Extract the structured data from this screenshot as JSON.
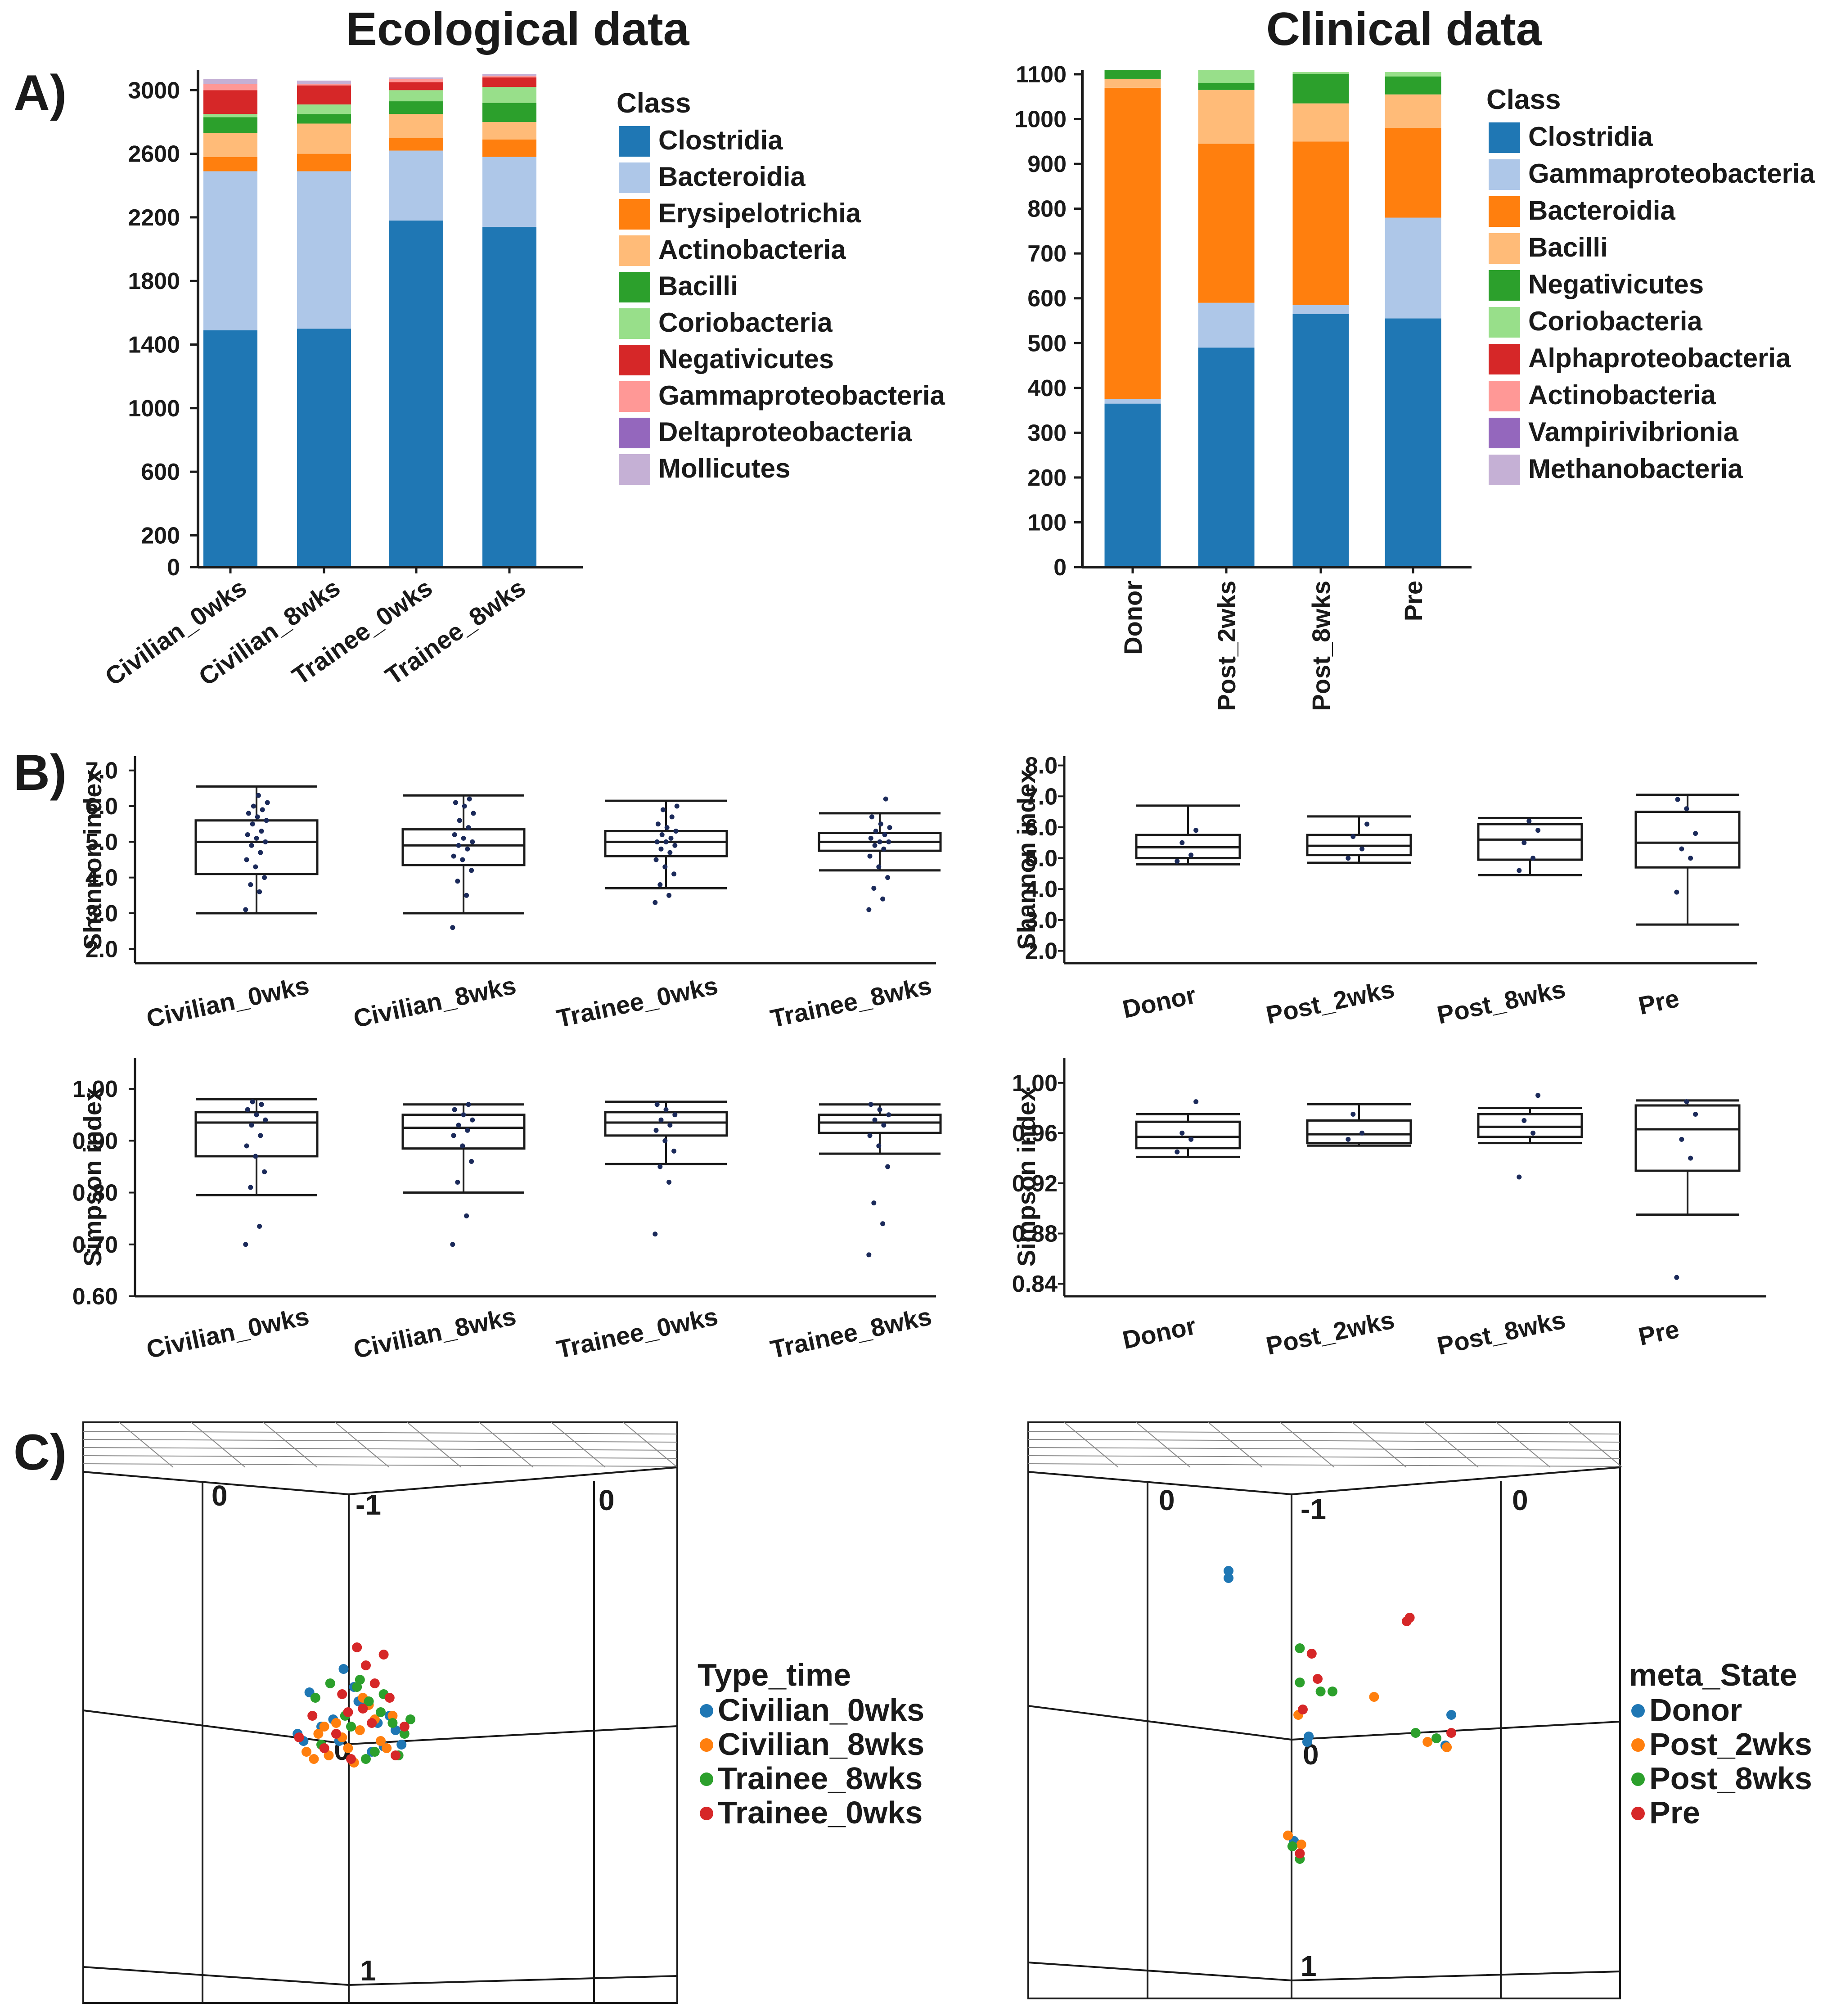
{
  "figure": {
    "panel_labels": [
      "A)",
      "B)",
      "C)"
    ],
    "section_titles": {
      "ecological": "Ecological data",
      "clinical": "Clinical data"
    }
  },
  "colors": {
    "palette10": [
      "#1f77b4",
      "#aec7e8",
      "#ff7f0e",
      "#ffbb78",
      "#2ca02c",
      "#98df8a",
      "#d62728",
      "#ff9896",
      "#9467bd",
      "#c5b0d5"
    ],
    "box_line": "#1a1a1a",
    "dot": "#1b2a5a"
  },
  "chart_data": [
    {
      "id": "eco_bar",
      "type": "bar",
      "stacked": true,
      "title": "Ecological data",
      "legend_title": "Class",
      "legend_position": "right",
      "categories": [
        "Civilian_0wks",
        "Civilian_8wks",
        "Trainee_0wks",
        "Trainee_8wks"
      ],
      "yticks": [
        0,
        200,
        600,
        1000,
        1400,
        1800,
        2200,
        2600,
        3000
      ],
      "ylim": [
        0,
        3100
      ],
      "series": [
        {
          "name": "Clostridia",
          "values": [
            1490,
            1500,
            2180,
            2140
          ]
        },
        {
          "name": "Bacteroidia",
          "values": [
            1000,
            990,
            440,
            440
          ]
        },
        {
          "name": "Erysipelotrichia",
          "values": [
            90,
            110,
            80,
            110
          ]
        },
        {
          "name": "Actinobacteria",
          "values": [
            150,
            190,
            150,
            110
          ]
        },
        {
          "name": "Bacilli",
          "values": [
            100,
            60,
            80,
            120
          ]
        },
        {
          "name": "Coriobacteria",
          "values": [
            20,
            60,
            70,
            100
          ]
        },
        {
          "name": "Negativicutes",
          "values": [
            150,
            120,
            50,
            60
          ]
        },
        {
          "name": "Gammaproteobacteria",
          "values": [
            40,
            10,
            20,
            10
          ]
        },
        {
          "name": "Deltaproteobacteria",
          "values": [
            0,
            0,
            0,
            0
          ]
        },
        {
          "name": "Mollicutes",
          "values": [
            30,
            20,
            10,
            10
          ]
        }
      ]
    },
    {
      "id": "clin_bar",
      "type": "bar",
      "stacked": true,
      "title": "Clinical data",
      "legend_title": "Class",
      "legend_position": "right",
      "categories": [
        "Donor",
        "Post_2wks",
        "Post_8wks",
        "Pre"
      ],
      "yticks": [
        0,
        100,
        200,
        300,
        400,
        500,
        600,
        700,
        800,
        900,
        1000,
        1100
      ],
      "ylim": [
        0,
        1100
      ],
      "series": [
        {
          "name": "Clostridia",
          "values": [
            365,
            490,
            565,
            555
          ]
        },
        {
          "name": "Gammaproteobacteria",
          "values": [
            10,
            100,
            20,
            225
          ]
        },
        {
          "name": "Bacteroidia",
          "values": [
            695,
            355,
            365,
            200
          ]
        },
        {
          "name": "Bacilli",
          "values": [
            20,
            120,
            85,
            75
          ]
        },
        {
          "name": "Negativicutes",
          "values": [
            20,
            15,
            65,
            40
          ]
        },
        {
          "name": "Coriobacteria",
          "values": [
            0,
            30,
            5,
            10
          ]
        },
        {
          "name": "Alphaproteobacteria",
          "values": [
            0,
            0,
            0,
            0
          ]
        },
        {
          "name": "Actinobacteria",
          "values": [
            0,
            0,
            0,
            0
          ]
        },
        {
          "name": "Vampirivibrionia",
          "values": [
            0,
            0,
            0,
            0
          ]
        },
        {
          "name": "Methanobacteria",
          "values": [
            0,
            0,
            0,
            0
          ]
        }
      ]
    },
    {
      "id": "eco_shannon",
      "type": "box",
      "ylabel": "Shannon index",
      "categories": [
        "Civilian_0wks",
        "Civilian_8wks",
        "Trainee_0wks",
        "Trainee_8wks"
      ],
      "yticks": [
        2.0,
        3.0,
        4.0,
        5.0,
        6.0,
        7.0
      ],
      "tick_labels": [
        "2.0",
        "3.0",
        "4.0",
        "5.0",
        "6.0",
        "7.0"
      ],
      "ylim": [
        1.6,
        7.4
      ],
      "boxes": [
        {
          "min": 3.0,
          "q1": 4.1,
          "median": 5.0,
          "q3": 5.6,
          "max": 6.55,
          "points": [
            3.1,
            3.6,
            3.8,
            4.0,
            4.3,
            4.5,
            4.7,
            4.9,
            5.0,
            5.1,
            5.2,
            5.3,
            5.5,
            5.6,
            5.7,
            5.8,
            5.9,
            6.0,
            6.1,
            6.3
          ]
        },
        {
          "min": 3.0,
          "q1": 4.35,
          "median": 4.9,
          "q3": 5.35,
          "max": 6.3,
          "points": [
            2.6,
            3.5,
            3.9,
            4.2,
            4.5,
            4.6,
            4.8,
            4.9,
            5.0,
            5.1,
            5.2,
            5.4,
            5.6,
            5.8,
            6.0,
            6.1,
            6.2
          ]
        },
        {
          "min": 3.7,
          "q1": 4.6,
          "median": 5.0,
          "q3": 5.3,
          "max": 6.15,
          "points": [
            3.3,
            3.5,
            3.8,
            4.1,
            4.3,
            4.5,
            4.7,
            4.8,
            4.9,
            5.0,
            5.0,
            5.1,
            5.2,
            5.3,
            5.4,
            5.5,
            5.7,
            5.9,
            6.0
          ]
        },
        {
          "min": 4.2,
          "q1": 4.75,
          "median": 5.0,
          "q3": 5.25,
          "max": 5.8,
          "points": [
            3.1,
            3.4,
            3.7,
            4.0,
            4.3,
            4.6,
            4.8,
            4.9,
            5.0,
            5.0,
            5.1,
            5.2,
            5.3,
            5.4,
            5.5,
            5.7,
            6.2
          ]
        }
      ]
    },
    {
      "id": "clin_shannon",
      "type": "box",
      "ylabel": "Shannon index",
      "categories": [
        "Donor",
        "Post_2wks",
        "Post_8wks",
        "Pre"
      ],
      "yticks": [
        2.0,
        3.0,
        4.0,
        5.0,
        6.0,
        7.0,
        8.0
      ],
      "tick_labels": [
        "2.0",
        "3.0",
        "4.0",
        "5.0",
        "6.0",
        "7.0",
        "8.0"
      ],
      "ylim": [
        1.6,
        8.3
      ],
      "boxes": [
        {
          "min": 4.8,
          "q1": 5.0,
          "median": 5.35,
          "q3": 5.75,
          "max": 6.7,
          "points": [
            4.9,
            5.1,
            5.5,
            5.9
          ]
        },
        {
          "min": 4.85,
          "q1": 5.1,
          "median": 5.4,
          "q3": 5.75,
          "max": 6.35,
          "points": [
            5.0,
            5.3,
            5.7,
            6.1
          ]
        },
        {
          "min": 4.45,
          "q1": 4.95,
          "median": 5.6,
          "q3": 6.1,
          "max": 6.3,
          "points": [
            4.6,
            5.0,
            5.5,
            5.9,
            6.2
          ]
        },
        {
          "min": 2.85,
          "q1": 4.7,
          "median": 5.5,
          "q3": 6.5,
          "max": 7.05,
          "points": [
            3.9,
            5.0,
            5.3,
            5.8,
            6.6,
            6.9
          ]
        }
      ]
    },
    {
      "id": "eco_simpson",
      "type": "box",
      "ylabel": "Simpson index",
      "categories": [
        "Civilian_0wks",
        "Civilian_8wks",
        "Trainee_0wks",
        "Trainee_8wks"
      ],
      "yticks": [
        0.6,
        0.7,
        0.8,
        0.9,
        1.0
      ],
      "tick_labels": [
        "0.60",
        "0.70",
        "0.80",
        "0.90",
        "1.00"
      ],
      "ylim": [
        0.6,
        1.06
      ],
      "boxes": [
        {
          "min": 0.795,
          "q1": 0.87,
          "median": 0.935,
          "q3": 0.955,
          "max": 0.98,
          "points": [
            0.7,
            0.735,
            0.81,
            0.84,
            0.87,
            0.89,
            0.91,
            0.93,
            0.94,
            0.95,
            0.96,
            0.97,
            0.975
          ]
        },
        {
          "min": 0.8,
          "q1": 0.885,
          "median": 0.925,
          "q3": 0.95,
          "max": 0.97,
          "points": [
            0.7,
            0.755,
            0.82,
            0.86,
            0.89,
            0.91,
            0.92,
            0.93,
            0.94,
            0.95,
            0.96,
            0.97
          ]
        },
        {
          "min": 0.855,
          "q1": 0.91,
          "median": 0.935,
          "q3": 0.955,
          "max": 0.975,
          "points": [
            0.72,
            0.82,
            0.85,
            0.88,
            0.9,
            0.92,
            0.93,
            0.94,
            0.95,
            0.96,
            0.97
          ]
        },
        {
          "min": 0.875,
          "q1": 0.915,
          "median": 0.935,
          "q3": 0.95,
          "max": 0.97,
          "points": [
            0.68,
            0.74,
            0.78,
            0.85,
            0.89,
            0.91,
            0.93,
            0.94,
            0.95,
            0.96,
            0.97
          ]
        }
      ]
    },
    {
      "id": "clin_simpson",
      "type": "box",
      "ylabel": "Simpson index",
      "categories": [
        "Donor",
        "Post_2wks",
        "Post_8wks",
        "Pre"
      ],
      "yticks": [
        0.84,
        0.88,
        0.92,
        0.96,
        1.0
      ],
      "tick_labels": [
        "0.84",
        "0.88",
        "0.92",
        "0.96",
        "1.00"
      ],
      "ylim": [
        0.83,
        1.02
      ],
      "boxes": [
        {
          "min": 0.941,
          "q1": 0.948,
          "median": 0.957,
          "q3": 0.969,
          "max": 0.975,
          "points": [
            0.945,
            0.955,
            0.96,
            0.985
          ]
        },
        {
          "min": 0.95,
          "q1": 0.952,
          "median": 0.959,
          "q3": 0.97,
          "max": 0.983,
          "points": [
            0.955,
            0.96,
            0.975
          ]
        },
        {
          "min": 0.952,
          "q1": 0.957,
          "median": 0.965,
          "q3": 0.975,
          "max": 0.98,
          "points": [
            0.925,
            0.96,
            0.97,
            0.99
          ]
        },
        {
          "min": 0.895,
          "q1": 0.93,
          "median": 0.963,
          "q3": 0.982,
          "max": 0.986,
          "points": [
            0.845,
            0.94,
            0.955,
            0.975,
            0.985
          ]
        }
      ]
    },
    {
      "id": "eco_pca",
      "type": "scatter",
      "dimensions": 3,
      "legend_title": "Type_time",
      "legend_position": "right",
      "axis_labels": {
        "left_top": "0",
        "top_center": "-1",
        "right_top": "0",
        "center": "0",
        "bottom": "1"
      },
      "xlim": [
        -1,
        1
      ],
      "ylim": [
        -1,
        1
      ],
      "series": [
        {
          "name": "Civilian_0wks",
          "x": [
            -0.36,
            -0.32,
            -0.28,
            -0.05,
            0.1,
            0.18,
            -0.12,
            0.22,
            0.3,
            0.05,
            -0.2,
            0.14,
            -0.08,
            0.26,
            0.34,
            0.02
          ],
          "y": [
            0.02,
            -0.02,
            0.25,
            0.38,
            0.18,
            0.08,
            0.1,
            -0.05,
            0.04,
            0.2,
            0.06,
            -0.08,
            -0.02,
            0.12,
            -0.04,
            0.28
          ]
        },
        {
          "name": "Civilian_8wks",
          "x": [
            -0.3,
            -0.25,
            -0.22,
            -0.15,
            -0.1,
            -0.02,
            0.06,
            0.12,
            0.2,
            0.28,
            -0.18,
            0.02,
            0.16,
            0.24,
            0.08,
            -0.06
          ],
          "y": [
            -0.08,
            -0.12,
            0.02,
            -0.1,
            0.08,
            -0.06,
            0.04,
            0.18,
            -0.02,
            0.12,
            0.06,
            -0.14,
            0.1,
            -0.06,
            0.22,
            0.0
          ]
        },
        {
          "name": "Trainee_8wks",
          "x": [
            -0.24,
            -0.14,
            -0.04,
            0.04,
            0.12,
            0.2,
            0.28,
            0.36,
            0.4,
            0.1,
            -0.2,
            0.0,
            0.16,
            0.32,
            0.22,
            0.06
          ],
          "y": [
            0.22,
            0.3,
            0.12,
            0.28,
            0.2,
            0.14,
            0.08,
            0.02,
            0.1,
            -0.12,
            -0.04,
            0.06,
            -0.08,
            -0.1,
            0.24,
            0.32
          ]
        },
        {
          "name": "Trainee_0wks",
          "x": [
            -0.35,
            -0.26,
            -0.18,
            -0.1,
            -0.02,
            0.04,
            0.1,
            0.16,
            0.22,
            0.3,
            0.36,
            0.0,
            0.08,
            0.14,
            0.26,
            -0.06
          ],
          "y": [
            0.0,
            0.12,
            -0.06,
            0.02,
            0.14,
            0.5,
            0.4,
            0.3,
            0.46,
            -0.1,
            0.06,
            -0.12,
            0.16,
            0.08,
            0.22,
            0.24
          ]
        }
      ]
    },
    {
      "id": "clin_pca",
      "type": "scatter",
      "dimensions": 3,
      "legend_title": "meta_State",
      "legend_position": "right",
      "axis_labels": {
        "left_top": "0",
        "top_center": "-1",
        "right_top": "0",
        "center": "0",
        "bottom": "1"
      },
      "xlim": [
        -1,
        1
      ],
      "ylim": [
        -1,
        1
      ],
      "series": [
        {
          "name": "Donor",
          "x": [
            -0.5,
            -0.5,
            0.03,
            0.04,
            -0.06,
            0.96,
            1.0
          ],
          "y": [
            0.86,
            0.9,
            -0.05,
            -0.02,
            -0.6,
            -0.07,
            0.1
          ]
        },
        {
          "name": "Post_2wks",
          "x": [
            -0.03,
            0.48,
            -0.01,
            -0.1,
            0.84,
            0.97
          ],
          "y": [
            0.1,
            0.2,
            -0.62,
            -0.57,
            -0.05,
            -0.08
          ]
        },
        {
          "name": "Post_8wks",
          "x": [
            -0.02,
            -0.02,
            0.12,
            0.2,
            0.76,
            0.9,
            -0.02,
            -0.07
          ],
          "y": [
            0.47,
            0.28,
            0.23,
            0.23,
            0.0,
            -0.03,
            -0.7,
            -0.63
          ]
        },
        {
          "name": "Pre",
          "x": [
            0.06,
            0.1,
            0.0,
            0.7,
            0.72,
            1.0,
            -0.02
          ],
          "y": [
            0.44,
            0.3,
            0.13,
            0.62,
            0.64,
            0.0,
            -0.67
          ]
        }
      ]
    }
  ]
}
